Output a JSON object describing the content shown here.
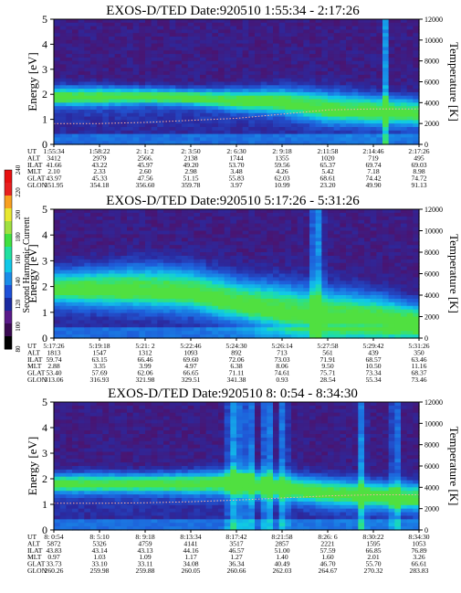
{
  "colors": {
    "background": "#2e0a3a",
    "colorbar": [
      "#000000",
      "#3a0a52",
      "#5a1a8a",
      "#1a2aa0",
      "#1e50d8",
      "#1a8ce8",
      "#10c8e8",
      "#20e0a0",
      "#40e040",
      "#a0e040",
      "#e8e830",
      "#f8a020",
      "#e82020",
      "#e81010"
    ]
  },
  "colorbar": {
    "label": "Second Harmonic Current",
    "ticks": [
      "80",
      "100",
      "120",
      "140",
      "160",
      "180",
      "200",
      "220",
      "240"
    ]
  },
  "row_labels": [
    "UT",
    "ALT",
    "ILAT",
    "MLT",
    "GLAT",
    "GLON"
  ],
  "chart_data": [
    {
      "type": "heatmap",
      "title": "EXOS-D/TED   Date:920510   1:55:34 - 2:17:26",
      "ylabel": "Energy [eV]",
      "y2label": "Temperature [K]",
      "ylim": [
        0,
        5
      ],
      "y2lim": [
        0,
        12000
      ],
      "yticks": [
        "0",
        "1",
        "2",
        "3",
        "4",
        "5"
      ],
      "y2ticks": [
        "0",
        "2000",
        "4000",
        "6000",
        "8000",
        "10000",
        "12000"
      ],
      "band": {
        "level": [
          1.95,
          1.95,
          1.95,
          1.9,
          1.8,
          1.75,
          1.5,
          1.4,
          1.3
        ],
        "width": [
          0.35,
          0.35,
          0.3,
          0.3,
          0.4,
          0.5,
          0.6,
          0.55,
          0.5
        ]
      },
      "temperature": [
        2000,
        2000,
        2100,
        2300,
        2500,
        2900,
        3300,
        3400,
        3400
      ],
      "columns": [
        {
          "UT": "1:55:34",
          "ALT": "3412",
          "ILAT": "41.66",
          "MLT": "2.10",
          "GLAT": "43.97",
          "GLON": "351.95"
        },
        {
          "UT": "1:58:22",
          "ALT": "2979",
          "ILAT": "43.22",
          "MLT": "2.33",
          "GLAT": "45.33",
          "GLON": "354.18"
        },
        {
          "UT": "2: 1: 2",
          "ALT": "2566.",
          "ILAT": "45.97",
          "MLT": "2.60",
          "GLAT": "47.56",
          "GLON": "356.60"
        },
        {
          "UT": "2: 3:50",
          "ALT": "2138",
          "ILAT": "49.20",
          "MLT": "2.98",
          "GLAT": "51.15",
          "GLON": "359.78"
        },
        {
          "UT": "2: 6:30",
          "ALT": "1744",
          "ILAT": "53.70",
          "MLT": "3.48",
          "GLAT": "55.83",
          "GLON": "3.97"
        },
        {
          "UT": "2: 9:18",
          "ALT": "1355",
          "ILAT": "59.56",
          "MLT": "4.26",
          "GLAT": "62.03",
          "GLON": "10.99"
        },
        {
          "UT": "2:11:58",
          "ALT": "1020",
          "ILAT": "65.37",
          "MLT": "5.42",
          "GLAT": "68.61",
          "GLON": "23.20"
        },
        {
          "UT": "2:14:46",
          "ALT": "719",
          "ILAT": "69.74",
          "MLT": "7.18",
          "GLAT": "74.42",
          "GLON": "49.90"
        },
        {
          "UT": "2:17:26",
          "ALT": "495",
          "ILAT": "69.03",
          "MLT": "8.98",
          "GLAT": "74.72",
          "GLON": "91.13"
        }
      ]
    },
    {
      "type": "heatmap",
      "title": "EXOS-D/TED   Date:920510   5:17:26 - 5:31:26",
      "ylabel": "Energy [eV]",
      "y2label": "Temperature [K]",
      "ylim": [
        0,
        5
      ],
      "y2lim": [
        0,
        12000
      ],
      "yticks": [
        "0",
        "1",
        "2",
        "3",
        "4",
        "5"
      ],
      "y2ticks": [
        "0",
        "2000",
        "4000",
        "6000",
        "8000",
        "10000",
        "12000"
      ],
      "band": {
        "level": [
          2.0,
          2.0,
          2.0,
          1.9,
          1.5,
          1.2,
          1.0,
          0.9,
          0.7
        ],
        "width": [
          0.6,
          0.7,
          0.8,
          0.8,
          0.8,
          0.9,
          0.9,
          0.8,
          0.6
        ]
      },
      "temperature": [],
      "columns": [
        {
          "UT": "5:17:26",
          "ALT": "1813",
          "ILAT": "59.74",
          "MLT": "2.88",
          "GLAT": "53.40",
          "GLON": "313.06"
        },
        {
          "UT": "5:19:18",
          "ALT": "1547",
          "ILAT": "63.15",
          "MLT": "3.35",
          "GLAT": "57.69",
          "GLON": "316.93"
        },
        {
          "UT": "5:21: 2",
          "ALT": "1312",
          "ILAT": "66.46",
          "MLT": "3.99",
          "GLAT": "62.06",
          "GLON": "321.98"
        },
        {
          "UT": "5:22:46",
          "ALT": "1093",
          "ILAT": "69.60",
          "MLT": "4.97",
          "GLAT": "66.65",
          "GLON": "329.51"
        },
        {
          "UT": "5:24:30",
          "ALT": "892",
          "ILAT": "72.06",
          "MLT": "6.38",
          "GLAT": "71.11",
          "GLON": "341.38"
        },
        {
          "UT": "5:26:14",
          "ALT": "713",
          "ILAT": "73.03",
          "MLT": "8.06",
          "GLAT": "74.61",
          "GLON": "0.93"
        },
        {
          "UT": "5:27:58",
          "ALT": "561",
          "ILAT": "71.91",
          "MLT": "9.50",
          "GLAT": "75.71",
          "GLON": "28.54"
        },
        {
          "UT": "5:29:42",
          "ALT": "439",
          "ILAT": "68.57",
          "MLT": "10.50",
          "GLAT": "73.34",
          "GLON": "55.34"
        },
        {
          "UT": "5:31:26",
          "ALT": "350",
          "ILAT": "63.46",
          "MLT": "11.16",
          "GLAT": "68.37",
          "GLON": "73.46"
        }
      ]
    },
    {
      "type": "heatmap",
      "title": "EXOS-D/TED   Date:920510   8: 0:54 - 8:34:30",
      "ylabel": "Energy [eV]",
      "y2label": "Temperature [K]",
      "ylim": [
        0,
        5
      ],
      "y2lim": [
        0,
        12000
      ],
      "yticks": [
        "0",
        "1",
        "2",
        "3",
        "4",
        "5"
      ],
      "y2ticks": [
        "0",
        "2000",
        "4000",
        "6000",
        "8000",
        "10000",
        "12000"
      ],
      "band": {
        "level": [
          1.85,
          1.85,
          1.85,
          1.85,
          1.9,
          1.7,
          1.5,
          1.4,
          1.3
        ],
        "width": [
          0.35,
          0.35,
          0.35,
          0.4,
          0.45,
          0.5,
          0.5,
          0.5,
          0.5
        ]
      },
      "temperature": [
        2500,
        2500,
        2550,
        2650,
        2800,
        3000,
        3200,
        3300,
        3300
      ],
      "columns": [
        {
          "UT": "8: 0:54",
          "ALT": "5872",
          "ILAT": "43.83",
          "MLT": "0.97",
          "GLAT": "33.73",
          "GLON": "260.26"
        },
        {
          "UT": "8: 5:10",
          "ALT": "5326",
          "ILAT": "43.14",
          "MLT": "1.03",
          "GLAT": "33.10",
          "GLON": "259.98"
        },
        {
          "UT": "8: 9:18",
          "ALT": "4759",
          "ILAT": "43.13",
          "MLT": "1.09",
          "GLAT": "33.11",
          "GLON": "259.88"
        },
        {
          "UT": "8:13:34",
          "ALT": "4141",
          "ILAT": "44.16",
          "MLT": "1.17",
          "GLAT": "34.08",
          "GLON": "260.05"
        },
        {
          "UT": "8:17:42",
          "ALT": "3517",
          "ILAT": "46.57",
          "MLT": "1.27",
          "GLAT": "36.34",
          "GLON": "260.66"
        },
        {
          "UT": "8:21:58",
          "ALT": "2857",
          "ILAT": "51.00",
          "MLT": "1.40",
          "GLAT": "40.49",
          "GLON": "262.03"
        },
        {
          "UT": "8:26: 6",
          "ALT": "2221",
          "ILAT": "57.59",
          "MLT": "1.60",
          "GLAT": "46.70",
          "GLON": "264.67"
        },
        {
          "UT": "8:30:22",
          "ALT": "1595",
          "ILAT": "66.85",
          "MLT": "2.01",
          "GLAT": "55.70",
          "GLON": "270.32"
        },
        {
          "UT": "8:34:30",
          "ALT": "1053",
          "ILAT": "76.89",
          "MLT": "3.26",
          "GLAT": "66.61",
          "GLON": "283.83"
        }
      ]
    }
  ]
}
